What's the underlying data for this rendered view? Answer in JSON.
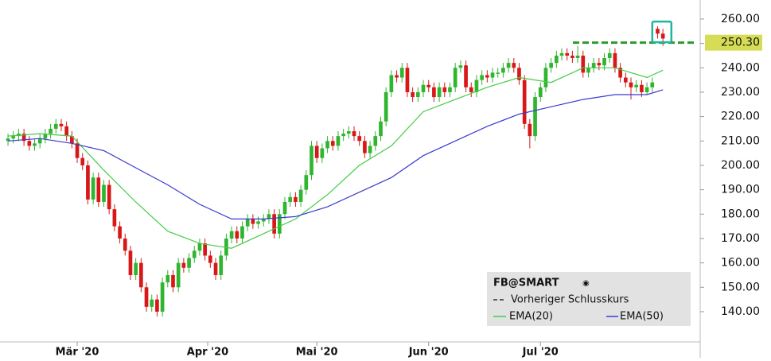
{
  "chart_data": {
    "type": "candlestick",
    "title": "FB@SMART",
    "xlim": [
      -1.5,
      130
    ],
    "ylim": [
      127.6,
      267.8
    ],
    "xticks": [
      {
        "value": 13,
        "label": "Mär '20"
      },
      {
        "value": 37.5,
        "label": "Apr '20"
      },
      {
        "value": 58,
        "label": "Mai '20"
      },
      {
        "value": 79,
        "label": "Jun '20"
      },
      {
        "value": 100,
        "label": "Jul '20"
      }
    ],
    "yticks": [
      {
        "value": 140,
        "label": "140.00"
      },
      {
        "value": 150,
        "label": "150.00"
      },
      {
        "value": 160,
        "label": "160.00"
      },
      {
        "value": 170,
        "label": "170.00"
      },
      {
        "value": 180,
        "label": "180.00"
      },
      {
        "value": 190,
        "label": "190.00"
      },
      {
        "value": 200,
        "label": "200.00"
      },
      {
        "value": 210,
        "label": "210.00"
      },
      {
        "value": 220,
        "label": "220.00"
      },
      {
        "value": 230,
        "label": "230.00"
      },
      {
        "value": 240,
        "label": "240.00"
      },
      {
        "value": 250,
        "label": "250.00"
      },
      {
        "value": 260,
        "label": "260.00"
      }
    ],
    "up_color": "#2fb52f",
    "down_color": "#d81818",
    "open": [
      210,
      211,
      212,
      213,
      210,
      208,
      209,
      211,
      213,
      215,
      217,
      216,
      212,
      209,
      203,
      200,
      186,
      195,
      185,
      192,
      182,
      175,
      170,
      165,
      155,
      160,
      150,
      142,
      145,
      140,
      152,
      155,
      150,
      160,
      158,
      162,
      165,
      168,
      163,
      160,
      155,
      163,
      170,
      173,
      170,
      175,
      178,
      176,
      177,
      178,
      180,
      172,
      180,
      185,
      187,
      185,
      190,
      196,
      208,
      203,
      207,
      210,
      208,
      212,
      213,
      214,
      212,
      210,
      205,
      208,
      212,
      218,
      230,
      237,
      236,
      240,
      230,
      228,
      230,
      233,
      232,
      228,
      232,
      230,
      232,
      240,
      241,
      232,
      230,
      235,
      237,
      236,
      238,
      238,
      240,
      242,
      240,
      235,
      217,
      212,
      228,
      232,
      240,
      242,
      245,
      246,
      245,
      244,
      245,
      238,
      240,
      242,
      241,
      244,
      246,
      240,
      236,
      234,
      232,
      233,
      230,
      232,
      256,
      254
    ],
    "high": [
      213,
      214,
      215,
      215,
      212,
      211,
      213,
      215,
      217,
      219,
      219,
      218,
      214,
      211,
      205,
      202,
      197,
      197,
      194,
      194,
      184,
      177,
      172,
      167,
      162,
      162,
      152,
      147,
      147,
      154,
      157,
      157,
      162,
      162,
      164,
      167,
      170,
      170,
      165,
      162,
      165,
      172,
      175,
      175,
      177,
      180,
      180,
      179,
      180,
      182,
      182,
      182,
      187,
      189,
      189,
      192,
      198,
      210,
      210,
      209,
      212,
      212,
      214,
      215,
      216,
      216,
      214,
      212,
      210,
      214,
      220,
      232,
      239,
      239,
      242,
      242,
      232,
      232,
      235,
      235,
      234,
      234,
      234,
      234,
      242,
      243,
      243,
      234,
      237,
      239,
      239,
      240,
      240,
      242,
      244,
      244,
      242,
      237,
      219,
      230,
      234,
      242,
      244,
      247,
      248,
      248,
      247,
      249,
      247,
      242,
      244,
      244,
      246,
      248,
      248,
      242,
      238,
      236,
      235,
      235,
      234,
      236,
      257,
      256
    ],
    "low": [
      208,
      209,
      210,
      208,
      206,
      206,
      207,
      209,
      211,
      213,
      214,
      210,
      207,
      201,
      198,
      184,
      184,
      183,
      183,
      180,
      173,
      168,
      163,
      153,
      153,
      148,
      140,
      140,
      138,
      138,
      150,
      148,
      148,
      156,
      156,
      160,
      163,
      161,
      158,
      153,
      153,
      161,
      168,
      168,
      168,
      173,
      174,
      174,
      175,
      176,
      170,
      170,
      178,
      183,
      183,
      183,
      188,
      194,
      201,
      201,
      205,
      206,
      206,
      210,
      211,
      210,
      208,
      203,
      203,
      206,
      210,
      216,
      228,
      234,
      234,
      228,
      226,
      226,
      228,
      230,
      226,
      226,
      228,
      228,
      230,
      238,
      230,
      228,
      228,
      233,
      234,
      234,
      236,
      236,
      238,
      238,
      233,
      215,
      207,
      210,
      226,
      230,
      238,
      240,
      243,
      243,
      242,
      242,
      236,
      236,
      238,
      239,
      239,
      242,
      238,
      234,
      232,
      227,
      230,
      228,
      229,
      230,
      252,
      249
    ],
    "close": [
      211,
      212,
      213,
      210,
      208,
      209,
      211,
      213,
      215,
      217,
      216,
      212,
      209,
      203,
      200,
      186,
      195,
      185,
      192,
      182,
      175,
      170,
      165,
      155,
      160,
      150,
      142,
      145,
      140,
      152,
      155,
      150,
      160,
      158,
      162,
      165,
      168,
      163,
      160,
      155,
      163,
      170,
      173,
      170,
      175,
      178,
      176,
      177,
      178,
      180,
      172,
      180,
      185,
      187,
      185,
      190,
      196,
      208,
      203,
      207,
      210,
      208,
      212,
      213,
      214,
      212,
      210,
      205,
      208,
      212,
      218,
      230,
      237,
      236,
      240,
      230,
      228,
      230,
      233,
      232,
      228,
      232,
      230,
      232,
      240,
      241,
      232,
      230,
      235,
      237,
      236,
      238,
      238,
      240,
      242,
      240,
      235,
      217,
      212,
      228,
      232,
      240,
      242,
      245,
      246,
      245,
      244,
      245,
      238,
      240,
      242,
      241,
      244,
      246,
      240,
      236,
      234,
      232,
      233,
      230,
      232,
      234,
      254,
      252
    ],
    "series": [
      {
        "name": "EMA(20)",
        "color": "#44cc44",
        "x": [
          0,
          6,
          12,
          18,
          24,
          30,
          36,
          42,
          48,
          54,
          60,
          66,
          72,
          78,
          84,
          90,
          96,
          102,
          108,
          114,
          120,
          123
        ],
        "values": [
          212,
          213,
          212,
          198,
          185,
          173,
          168,
          166,
          172,
          178,
          188,
          200,
          208,
          222,
          227,
          232,
          236,
          234,
          240,
          240,
          236,
          239
        ]
      },
      {
        "name": "EMA(50)",
        "color": "#3a3ad0",
        "x": [
          0,
          6,
          12,
          18,
          24,
          30,
          36,
          42,
          48,
          54,
          60,
          66,
          72,
          78,
          84,
          90,
          96,
          102,
          108,
          114,
          120,
          123
        ],
        "values": [
          210,
          211,
          209,
          206,
          199,
          192,
          184,
          178,
          178,
          179,
          183,
          189,
          195,
          204,
          210,
          216,
          221,
          224,
          227,
          229,
          229,
          231
        ]
      }
    ],
    "reference_line": {
      "name": "Vorheriger Schlusskurs",
      "value": 250.3,
      "value_label": "250.30",
      "color": "#2a9a2a"
    }
  }
}
